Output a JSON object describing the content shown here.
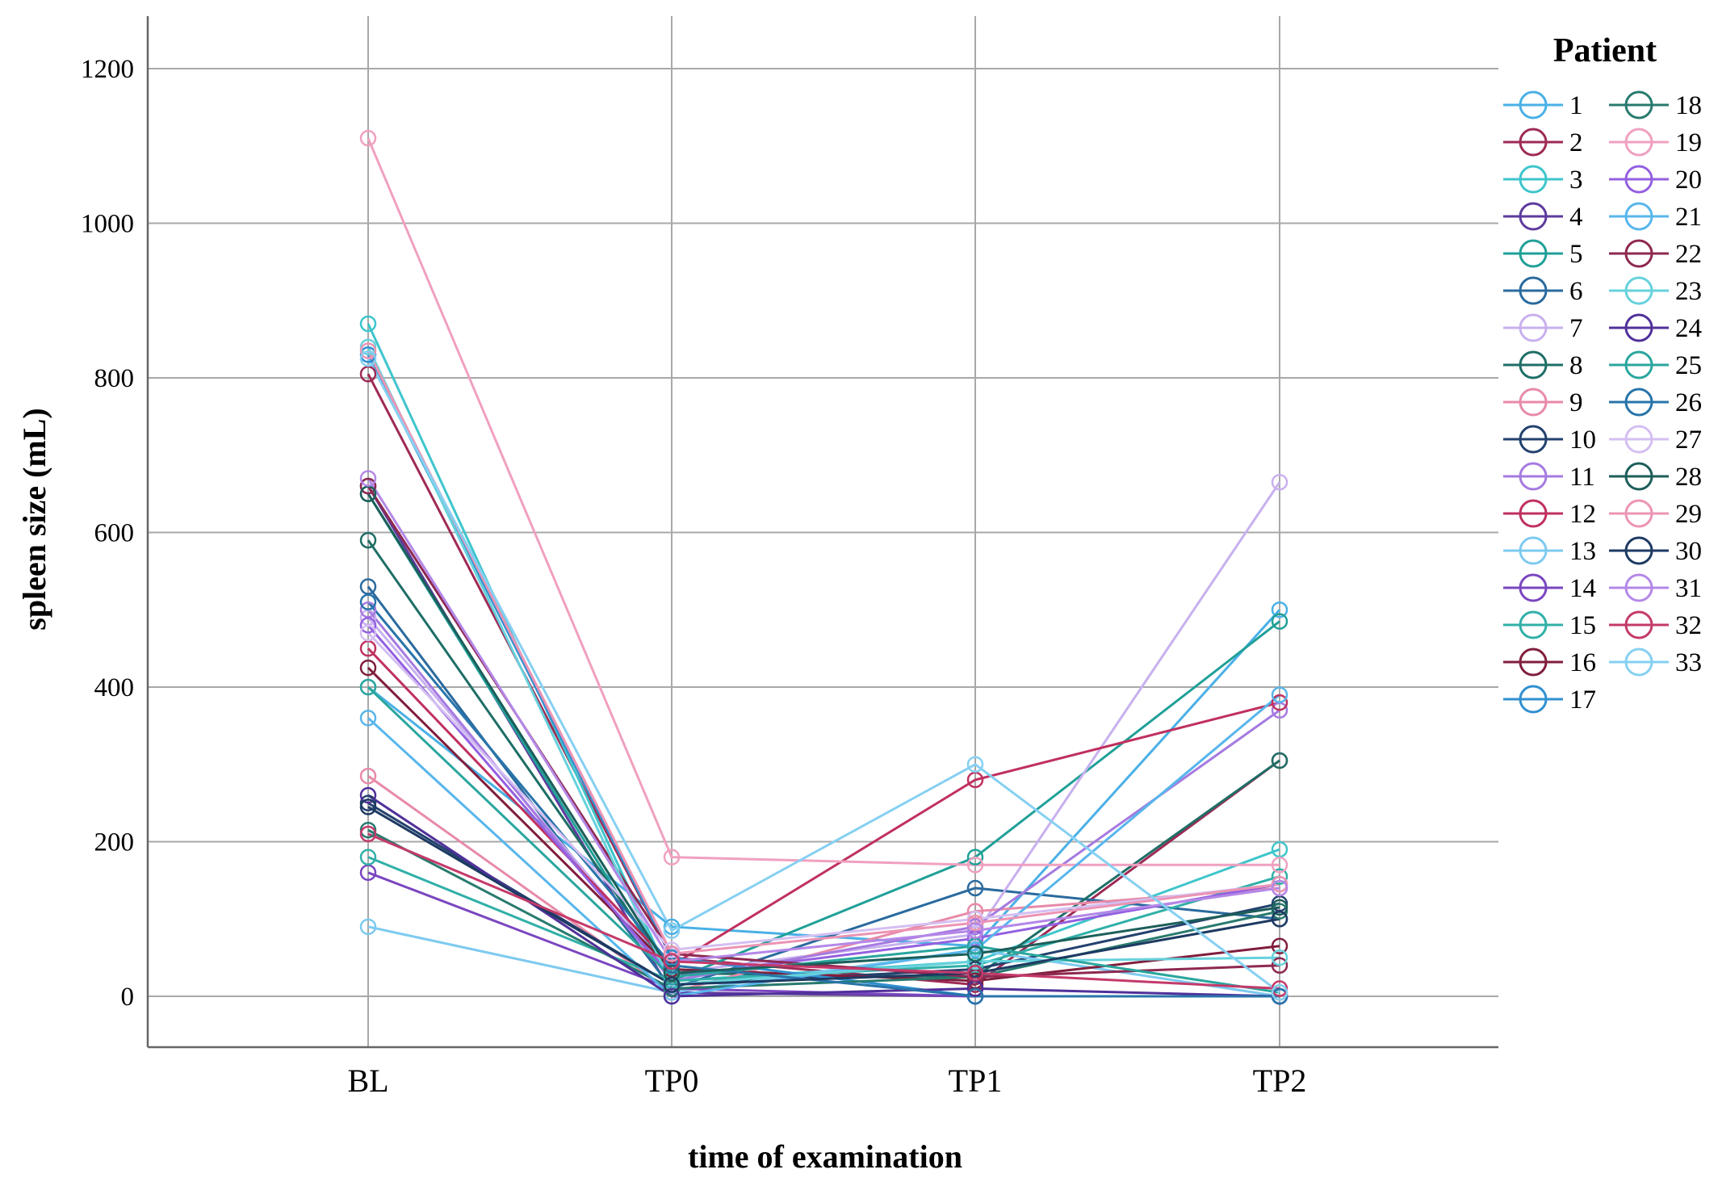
{
  "chart_data": {
    "type": "line",
    "xlabel": "time of examination",
    "ylabel": "spleen size (mL)",
    "categories": [
      "BL",
      "TP0",
      "TP1",
      "TP2"
    ],
    "ylim": [
      -65,
      1260
    ],
    "yticks": [
      0,
      200,
      400,
      600,
      800,
      1000,
      1200
    ],
    "grid": true,
    "legend": {
      "title": "Patient",
      "placement": "right",
      "columns": 2
    },
    "marker": "open-circle",
    "series": [
      {
        "name": "1",
        "color": "#4ab0e6",
        "values": [
          400,
          90,
          65,
          500
        ]
      },
      {
        "name": "2",
        "color": "#9e2a55",
        "values": [
          805,
          50,
          15,
          305
        ]
      },
      {
        "name": "3",
        "color": "#3ec5cc",
        "values": [
          870,
          20,
          45,
          190
        ]
      },
      {
        "name": "4",
        "color": "#5e3a9e",
        "values": [
          660,
          5,
          0,
          0
        ]
      },
      {
        "name": "5",
        "color": "#20a098",
        "values": [
          650,
          20,
          180,
          485
        ]
      },
      {
        "name": "6",
        "color": "#2a6a9e",
        "values": [
          530,
          10,
          140,
          100
        ]
      },
      {
        "name": "7",
        "color": "#c8b0ee",
        "values": [
          490,
          30,
          80,
          665
        ]
      },
      {
        "name": "8",
        "color": "#1e6e66",
        "values": [
          590,
          30,
          25,
          305
        ]
      },
      {
        "name": "9",
        "color": "#e88aa8",
        "values": [
          285,
          5,
          110,
          140
        ]
      },
      {
        "name": "10",
        "color": "#23416e",
        "values": [
          250,
          15,
          35,
          120
        ]
      },
      {
        "name": "11",
        "color": "#a57ae0",
        "values": [
          500,
          20,
          90,
          370
        ]
      },
      {
        "name": "12",
        "color": "#c0305e",
        "values": [
          450,
          40,
          280,
          380
        ]
      },
      {
        "name": "13",
        "color": "#7dcaf0",
        "values": [
          90,
          5,
          60,
          0
        ]
      },
      {
        "name": "14",
        "color": "#7a46c0",
        "values": [
          160,
          10,
          0,
          0
        ]
      },
      {
        "name": "15",
        "color": "#30b0a8",
        "values": [
          180,
          20,
          40,
          155
        ]
      },
      {
        "name": "16",
        "color": "#801e3c",
        "values": [
          425,
          35,
          20,
          65
        ]
      },
      {
        "name": "17",
        "color": "#3090d0",
        "values": [
          830,
          50,
          0,
          0
        ]
      },
      {
        "name": "18",
        "color": "#287a6e",
        "values": [
          215,
          10,
          25,
          110
        ]
      },
      {
        "name": "19",
        "color": "#f0a0c0",
        "values": [
          1110,
          180,
          170,
          170
        ]
      },
      {
        "name": "20",
        "color": "#9460e0",
        "values": [
          480,
          25,
          75,
          145
        ]
      },
      {
        "name": "21",
        "color": "#58b6ec",
        "values": [
          360,
          0,
          60,
          390
        ]
      },
      {
        "name": "22",
        "color": "#8e2850",
        "values": [
          660,
          55,
          25,
          40
        ]
      },
      {
        "name": "23",
        "color": "#66d2dc",
        "values": [
          840,
          15,
          45,
          50
        ]
      },
      {
        "name": "24",
        "color": "#50309a",
        "values": [
          260,
          0,
          10,
          0
        ]
      },
      {
        "name": "25",
        "color": "#2aa69e",
        "values": [
          400,
          25,
          65,
          5
        ]
      },
      {
        "name": "26",
        "color": "#2874aa",
        "values": [
          510,
          40,
          0,
          0
        ]
      },
      {
        "name": "27",
        "color": "#d4bff2",
        "values": [
          470,
          60,
          100,
          145
        ]
      },
      {
        "name": "28",
        "color": "#1c5e5a",
        "values": [
          650,
          30,
          55,
          115
        ]
      },
      {
        "name": "29",
        "color": "#ec94b4",
        "values": [
          835,
          55,
          95,
          145
        ]
      },
      {
        "name": "30",
        "color": "#1d3a62",
        "values": [
          245,
          15,
          30,
          100
        ]
      },
      {
        "name": "31",
        "color": "#b488e8",
        "values": [
          670,
          45,
          85,
          140
        ]
      },
      {
        "name": "32",
        "color": "#c43a6a",
        "values": [
          210,
          45,
          30,
          10
        ]
      },
      {
        "name": "33",
        "color": "#86d0f2",
        "values": [
          825,
          85,
          300,
          5
        ]
      }
    ]
  }
}
